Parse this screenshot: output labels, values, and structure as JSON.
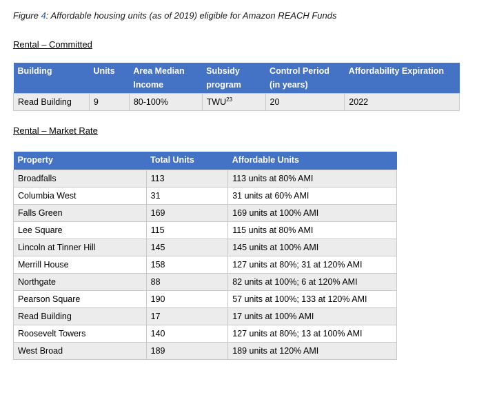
{
  "caption": {
    "prefix": "Figure ",
    "number": "4",
    "text": ": Affordable housing units (as of 2019) eligible for Amazon REACH Funds"
  },
  "committed": {
    "title": "Rental – Committed",
    "headers": [
      "Building",
      "Units",
      "Area Median Income",
      "Subsidy program",
      "Control Period (in years)",
      "Affordability Expiration"
    ],
    "rows": [
      {
        "building": "Read Building",
        "units": "9",
        "ami": "80-100%",
        "subsidy": "TWU",
        "subsidy_sup": "23",
        "control": "20",
        "expiration": "2022"
      }
    ]
  },
  "market": {
    "title": "Rental – Market Rate",
    "headers": [
      "Property",
      "Total Units",
      "Affordable Units"
    ],
    "rows": [
      {
        "property": "Broadfalls",
        "total": "113",
        "affordable": "113 units at 80% AMI"
      },
      {
        "property": "Columbia West",
        "total": "31",
        "affordable": "31 units at 60% AMI"
      },
      {
        "property": "Falls Green",
        "total": "169",
        "affordable": "169 units at 100% AMI"
      },
      {
        "property": "Lee Square",
        "total": "115",
        "affordable": "115 units at 80% AMI"
      },
      {
        "property": "Lincoln at Tinner Hill",
        "total": "145",
        "affordable": "145 units at 100% AMI"
      },
      {
        "property": "Merrill House",
        "total": "158",
        "affordable": "127 units at 80%; 31 at 120% AMI"
      },
      {
        "property": "Northgate",
        "total": "88",
        "affordable": "82 units at 100%; 6 at 120% AMI"
      },
      {
        "property": "Pearson Square",
        "total": "190",
        "affordable": "57 units at 100%; 133 at 120% AMI"
      },
      {
        "property": "Read Building",
        "total": "17",
        "affordable": "17 units at 100% AMI"
      },
      {
        "property": "Roosevelt Towers",
        "total": "140",
        "affordable": "127 units at 80%; 13 at 100% AMI"
      },
      {
        "property": "West Broad",
        "total": "189",
        "affordable": "189 units at 120% AMI"
      }
    ]
  }
}
